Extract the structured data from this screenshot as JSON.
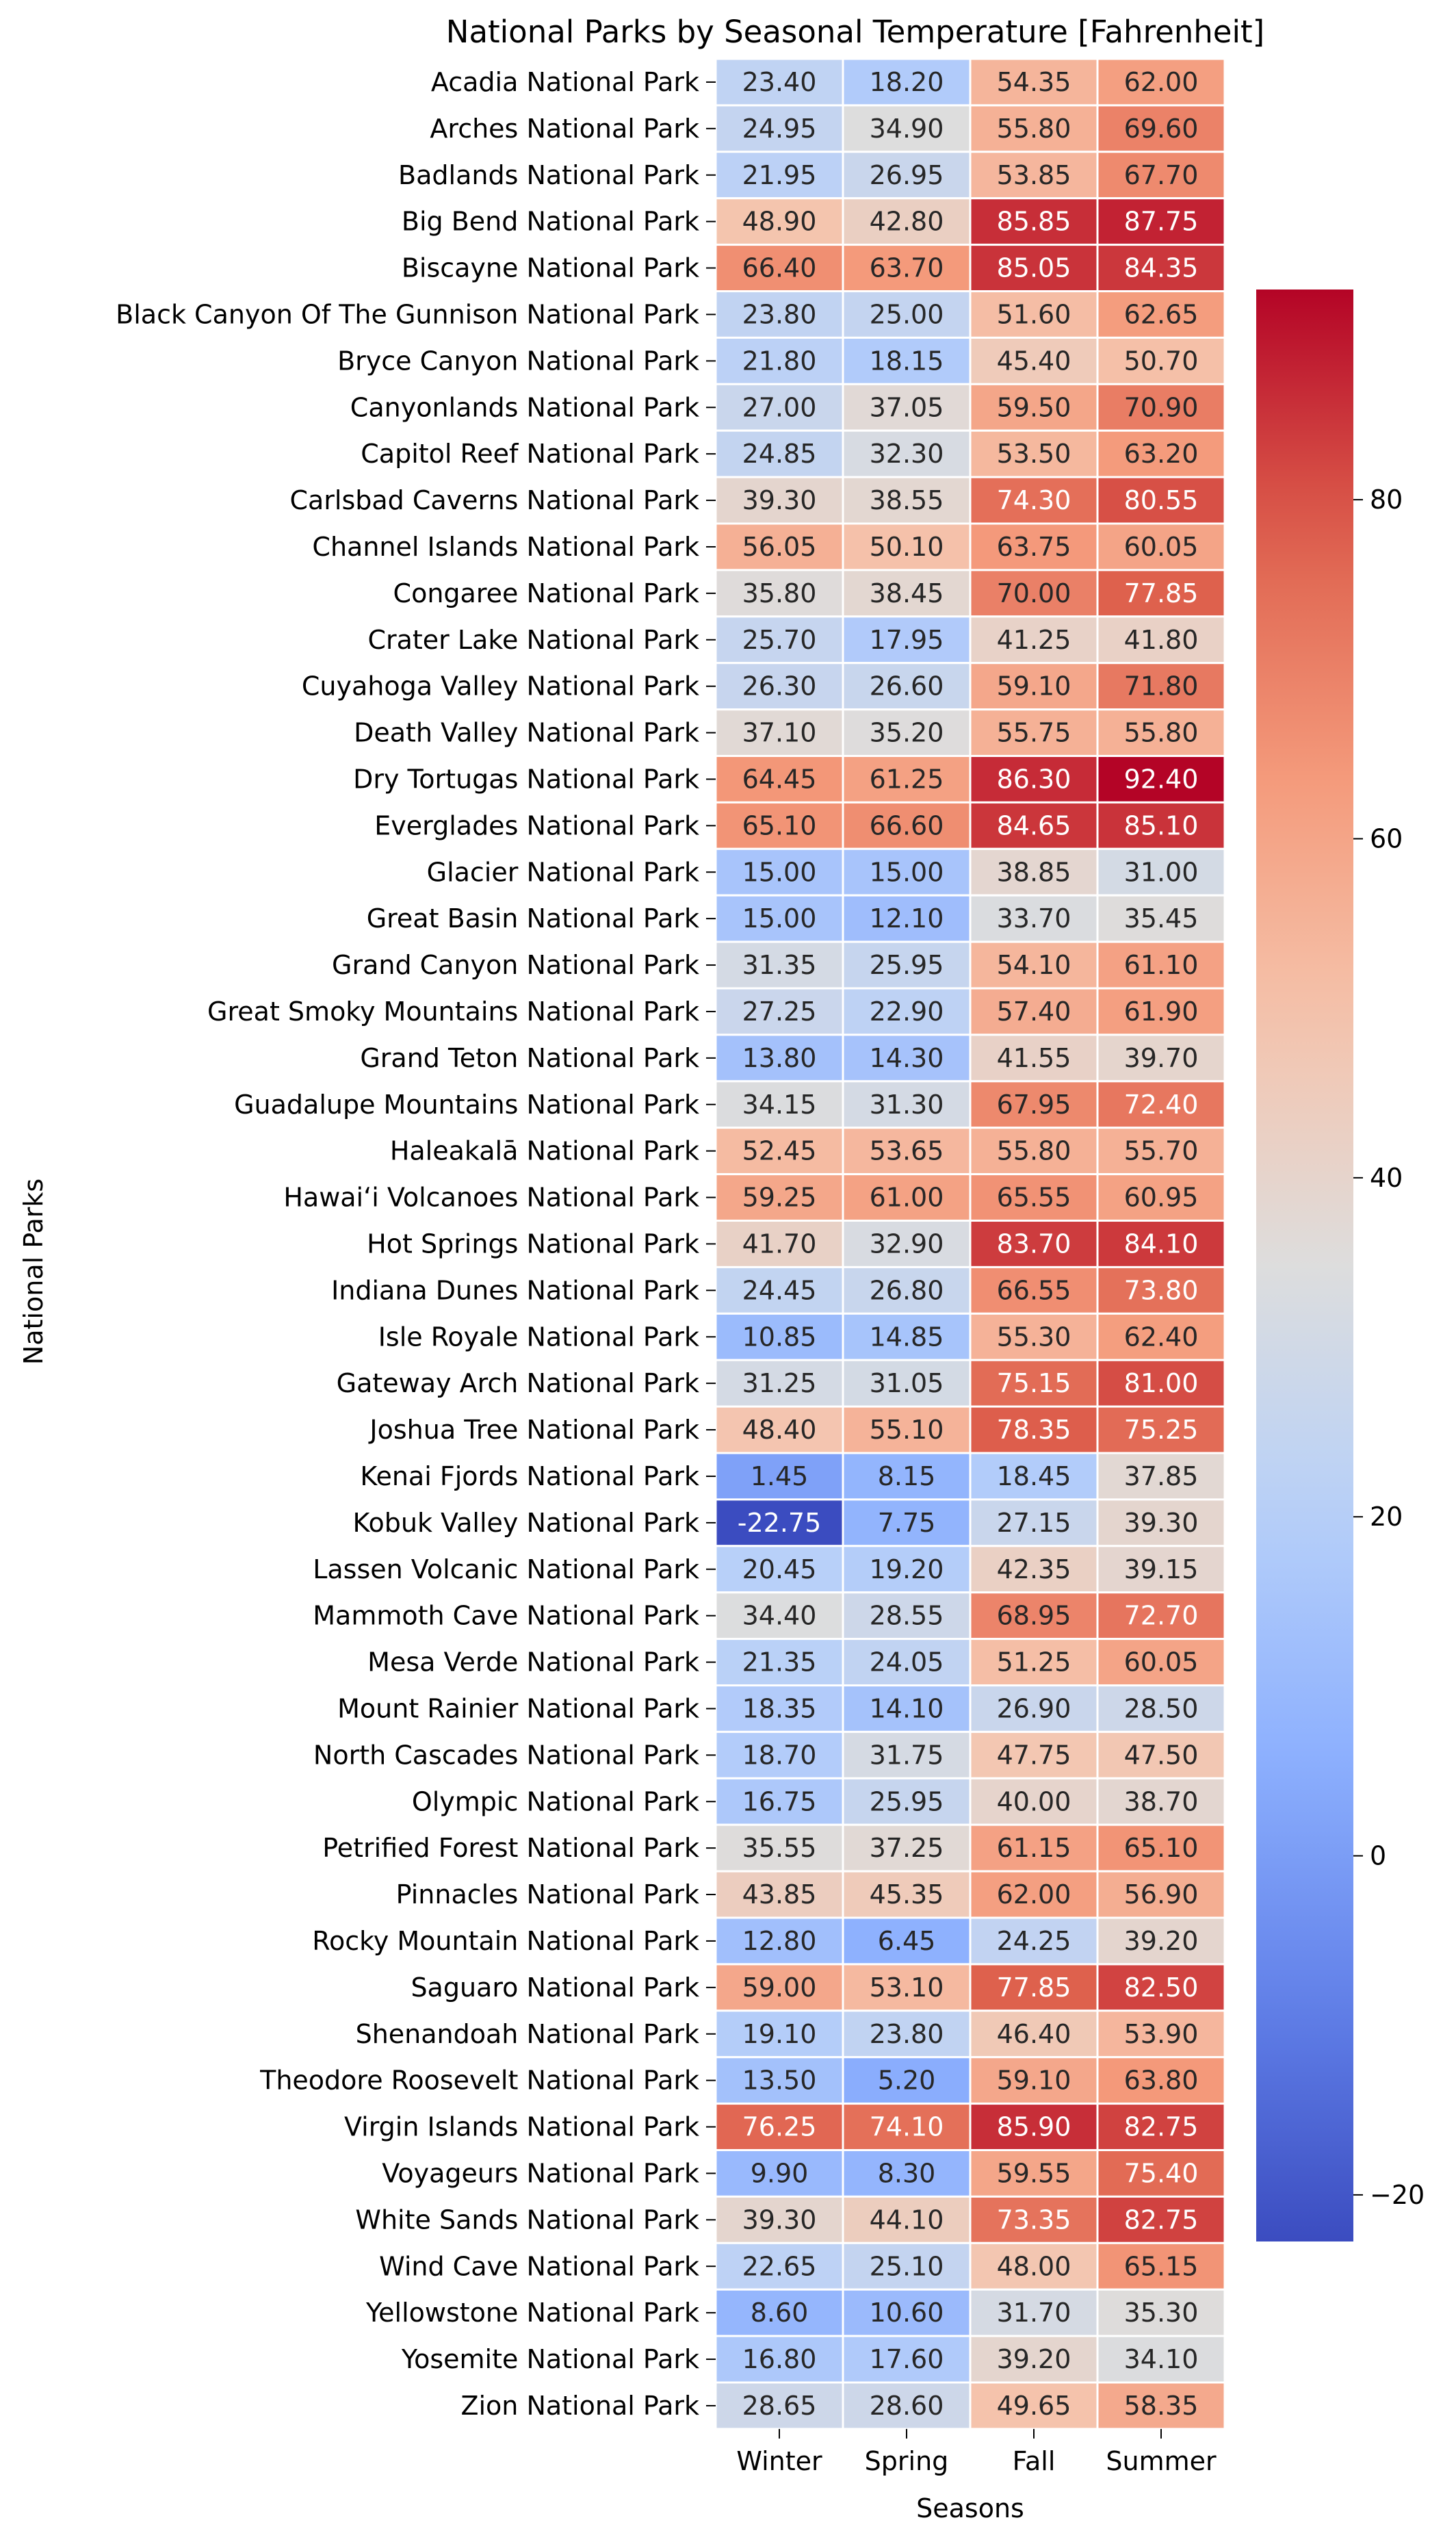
{
  "chart_data": {
    "type": "heatmap",
    "title": "National Parks by Seasonal Temperature [Fahrenheit]",
    "xlabel": "Seasons",
    "ylabel": "National Parks",
    "columns": [
      "Winter",
      "Spring",
      "Fall",
      "Summer"
    ],
    "rows": [
      "Acadia National Park",
      "Arches National Park",
      "Badlands National Park",
      "Big Bend National Park",
      "Biscayne National Park",
      "Black Canyon Of The Gunnison National Park",
      "Bryce Canyon National Park",
      "Canyonlands National Park",
      "Capitol Reef National Park",
      "Carlsbad Caverns National Park",
      "Channel Islands National Park",
      "Congaree National Park",
      "Crater Lake National Park",
      "Cuyahoga Valley National Park",
      "Death Valley National Park",
      "Dry Tortugas National Park",
      "Everglades National Park",
      "Glacier National Park",
      "Great Basin National Park",
      "Grand Canyon National Park",
      "Great Smoky Mountains National Park",
      "Grand Teton National Park",
      "Guadalupe Mountains National Park",
      "Haleakalā National Park",
      "Hawaiʻi Volcanoes National Park",
      "Hot Springs National Park",
      "Indiana Dunes National Park",
      "Isle Royale National Park",
      "Gateway Arch National Park",
      "Joshua Tree National Park",
      "Kenai Fjords National Park",
      "Kobuk Valley National Park",
      "Lassen Volcanic National Park",
      "Mammoth Cave National Park",
      "Mesa Verde National Park",
      "Mount Rainier National Park",
      "North Cascades National Park",
      "Olympic National Park",
      "Petrified Forest National Park",
      "Pinnacles National Park",
      "Rocky Mountain National Park",
      "Saguaro National Park",
      "Shenandoah National Park",
      "Theodore Roosevelt National Park",
      "Virgin Islands National Park",
      "Voyageurs National Park",
      "White Sands National Park",
      "Wind Cave National Park",
      "Yellowstone National Park",
      "Yosemite National Park",
      "Zion National Park"
    ],
    "values": [
      [
        23.4,
        18.2,
        54.35,
        62.0
      ],
      [
        24.95,
        34.9,
        55.8,
        69.6
      ],
      [
        21.95,
        26.95,
        53.85,
        67.7
      ],
      [
        48.9,
        42.8,
        85.85,
        87.75
      ],
      [
        66.4,
        63.7,
        85.05,
        84.35
      ],
      [
        23.8,
        25.0,
        51.6,
        62.65
      ],
      [
        21.8,
        18.15,
        45.4,
        50.7
      ],
      [
        27.0,
        37.05,
        59.5,
        70.9
      ],
      [
        24.85,
        32.3,
        53.5,
        63.2
      ],
      [
        39.3,
        38.55,
        74.3,
        80.55
      ],
      [
        56.05,
        50.1,
        63.75,
        60.05
      ],
      [
        35.8,
        38.45,
        70.0,
        77.85
      ],
      [
        25.7,
        17.95,
        41.25,
        41.8
      ],
      [
        26.3,
        26.6,
        59.1,
        71.8
      ],
      [
        37.1,
        35.2,
        55.75,
        55.8
      ],
      [
        64.45,
        61.25,
        86.3,
        92.4
      ],
      [
        65.1,
        66.6,
        84.65,
        85.1
      ],
      [
        15.0,
        15.0,
        38.85,
        31.0
      ],
      [
        15.0,
        12.1,
        33.7,
        35.45
      ],
      [
        31.35,
        25.95,
        54.1,
        61.1
      ],
      [
        27.25,
        22.9,
        57.4,
        61.9
      ],
      [
        13.8,
        14.3,
        41.55,
        39.7
      ],
      [
        34.15,
        31.3,
        67.95,
        72.4
      ],
      [
        52.45,
        53.65,
        55.8,
        55.7
      ],
      [
        59.25,
        61.0,
        65.55,
        60.95
      ],
      [
        41.7,
        32.9,
        83.7,
        84.1
      ],
      [
        24.45,
        26.8,
        66.55,
        73.8
      ],
      [
        10.85,
        14.85,
        55.3,
        62.4
      ],
      [
        31.25,
        31.05,
        75.15,
        81.0
      ],
      [
        48.4,
        55.1,
        78.35,
        75.25
      ],
      [
        1.45,
        8.15,
        18.45,
        37.85
      ],
      [
        -22.75,
        7.75,
        27.15,
        39.3
      ],
      [
        20.45,
        19.2,
        42.35,
        39.15
      ],
      [
        34.4,
        28.55,
        68.95,
        72.7
      ],
      [
        21.35,
        24.05,
        51.25,
        60.05
      ],
      [
        18.35,
        14.1,
        26.9,
        28.5
      ],
      [
        18.7,
        31.75,
        47.75,
        47.5
      ],
      [
        16.75,
        25.95,
        40.0,
        38.7
      ],
      [
        35.55,
        37.25,
        61.15,
        65.1
      ],
      [
        43.85,
        45.35,
        62.0,
        56.9
      ],
      [
        12.8,
        6.45,
        24.25,
        39.2
      ],
      [
        59.0,
        53.1,
        77.85,
        82.5
      ],
      [
        19.1,
        23.8,
        46.4,
        53.9
      ],
      [
        13.5,
        5.2,
        59.1,
        63.8
      ],
      [
        76.25,
        74.1,
        85.9,
        82.75
      ],
      [
        9.9,
        8.3,
        59.55,
        75.4
      ],
      [
        39.3,
        44.1,
        73.35,
        82.75
      ],
      [
        22.65,
        25.1,
        48.0,
        65.15
      ],
      [
        8.6,
        10.6,
        31.7,
        35.3
      ],
      [
        16.8,
        17.6,
        39.2,
        34.1
      ],
      [
        28.65,
        28.6,
        49.65,
        58.35
      ]
    ],
    "value_format": "2 decimals",
    "vmin": -22.75,
    "vmax": 92.4,
    "colormap": "coolwarm",
    "colorbar_ticks": [
      -20,
      0,
      20,
      40,
      60,
      80
    ],
    "cell_border_color": "#ffffff"
  }
}
